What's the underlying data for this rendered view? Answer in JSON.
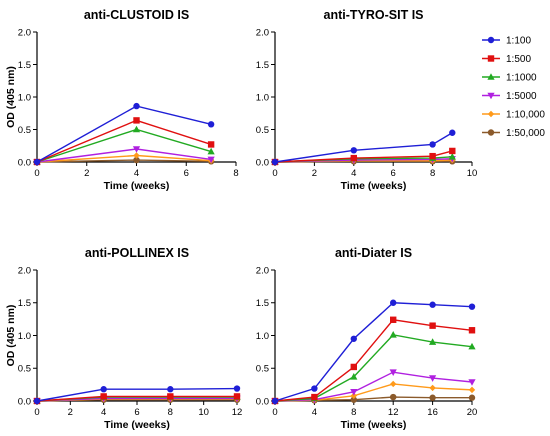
{
  "legend": {
    "placement": "right",
    "entries": [
      {
        "label": "1:100",
        "color": "#1f1fd6",
        "marker": "circle"
      },
      {
        "label": "1:500",
        "color": "#e01010",
        "marker": "square"
      },
      {
        "label": "1:1000",
        "color": "#22aa22",
        "marker": "triangle-up"
      },
      {
        "label": "1:5000",
        "color": "#b020e0",
        "marker": "triangle-down"
      },
      {
        "label": "1:10,000",
        "color": "#ff9a1a",
        "marker": "diamond"
      },
      {
        "label": "1:50,000",
        "color": "#8b5a2b",
        "marker": "circle"
      }
    ]
  },
  "chart_data": [
    {
      "type": "line",
      "title": "anti-CLUSTOID IS",
      "xlabel": "Time (weeks)",
      "ylabel": "OD (405 nm)",
      "xlim": [
        0,
        8
      ],
      "ylim": [
        0,
        2.0
      ],
      "xticks": [
        "0",
        "2",
        "4",
        "6",
        "8"
      ],
      "yticks": [
        "0.0",
        "0.5",
        "1.0",
        "1.5",
        "2.0"
      ],
      "x": [
        0,
        4,
        7
      ],
      "series": [
        {
          "name": "1:100",
          "values": [
            0,
            0.86,
            0.58
          ]
        },
        {
          "name": "1:500",
          "values": [
            0,
            0.64,
            0.27
          ]
        },
        {
          "name": "1:1000",
          "values": [
            0,
            0.5,
            0.16
          ]
        },
        {
          "name": "1:5000",
          "values": [
            0,
            0.2,
            0.04
          ]
        },
        {
          "name": "1:10,000",
          "values": [
            0,
            0.1,
            0.02
          ]
        },
        {
          "name": "1:50,000",
          "values": [
            0,
            0.03,
            0.01
          ]
        }
      ]
    },
    {
      "type": "line",
      "title": "anti-TYRO-SIT IS",
      "xlabel": "Time (weeks)",
      "ylabel": "",
      "xlim": [
        0,
        10
      ],
      "ylim": [
        0,
        2.0
      ],
      "xticks": [
        "0",
        "2",
        "4",
        "6",
        "8",
        "10"
      ],
      "yticks": [
        "0.0",
        "0.5",
        "1.0",
        "1.5",
        "2.0"
      ],
      "x": [
        0,
        4,
        8,
        9
      ],
      "series": [
        {
          "name": "1:100",
          "values": [
            0,
            0.18,
            0.27,
            0.45
          ]
        },
        {
          "name": "1:500",
          "values": [
            0,
            0.06,
            0.09,
            0.17
          ]
        },
        {
          "name": "1:1000",
          "values": [
            0,
            0.05,
            0.06,
            0.08
          ]
        },
        {
          "name": "1:5000",
          "values": [
            0,
            0.03,
            0.04,
            0.05
          ]
        },
        {
          "name": "1:10,000",
          "values": [
            0,
            0.02,
            0.02,
            0.03
          ]
        },
        {
          "name": "1:50,000",
          "values": [
            0,
            0.01,
            0.01,
            0.01
          ]
        }
      ]
    },
    {
      "type": "line",
      "title": "anti-POLLINEX IS",
      "xlabel": "Time (weeks)",
      "ylabel": "OD (405 nm)",
      "xlim": [
        0,
        12
      ],
      "ylim": [
        0,
        2.0
      ],
      "xticks": [
        "0",
        "2",
        "4",
        "6",
        "8",
        "10",
        "12"
      ],
      "yticks": [
        "0.0",
        "0.5",
        "1.0",
        "1.5",
        "2.0"
      ],
      "x": [
        0,
        4,
        8,
        12
      ],
      "series": [
        {
          "name": "1:100",
          "values": [
            0,
            0.18,
            0.18,
            0.19
          ]
        },
        {
          "name": "1:500",
          "values": [
            0,
            0.07,
            0.07,
            0.07
          ]
        },
        {
          "name": "1:1000",
          "values": [
            0,
            0.06,
            0.06,
            0.06
          ]
        },
        {
          "name": "1:5000",
          "values": [
            0,
            0.04,
            0.04,
            0.04
          ]
        },
        {
          "name": "1:10,000",
          "values": [
            0,
            0.03,
            0.03,
            0.03
          ]
        },
        {
          "name": "1:50,000",
          "values": [
            0,
            0.02,
            0.02,
            0.02
          ]
        }
      ]
    },
    {
      "type": "line",
      "title": "anti-Diater IS",
      "xlabel": "Time (weeks)",
      "ylabel": "",
      "xlim": [
        0,
        20
      ],
      "ylim": [
        0,
        2.0
      ],
      "xticks": [
        "0",
        "4",
        "8",
        "12",
        "16",
        "20"
      ],
      "yticks": [
        "0.0",
        "0.5",
        "1.0",
        "1.5",
        "2.0"
      ],
      "x": [
        0,
        4,
        8,
        12,
        16,
        20
      ],
      "series": [
        {
          "name": "1:100",
          "values": [
            0,
            0.19,
            0.95,
            1.5,
            1.47,
            1.44
          ]
        },
        {
          "name": "1:500",
          "values": [
            0,
            0.06,
            0.52,
            1.24,
            1.15,
            1.08
          ]
        },
        {
          "name": "1:1000",
          "values": [
            0,
            0.04,
            0.37,
            1.01,
            0.9,
            0.83
          ]
        },
        {
          "name": "1:5000",
          "values": [
            0,
            0.02,
            0.14,
            0.44,
            0.35,
            0.29
          ]
        },
        {
          "name": "1:10,000",
          "values": [
            0,
            0.01,
            0.08,
            0.26,
            0.2,
            0.17
          ]
        },
        {
          "name": "1:50,000",
          "values": [
            0,
            0.01,
            0.02,
            0.06,
            0.05,
            0.05
          ]
        }
      ]
    }
  ]
}
